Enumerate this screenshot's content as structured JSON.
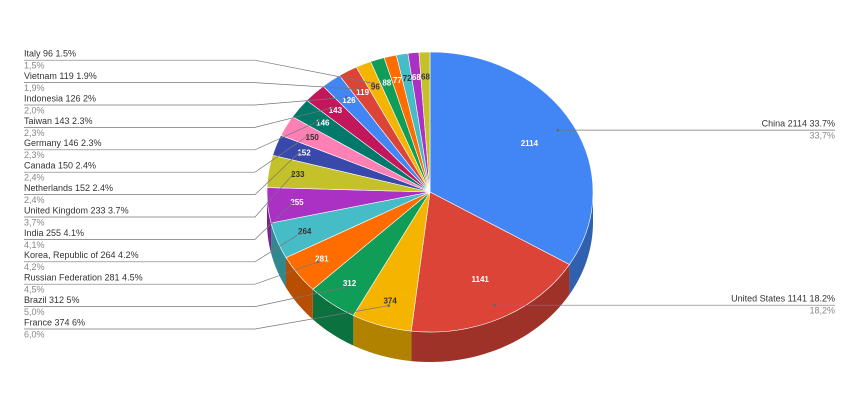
{
  "chart_data": {
    "type": "pie",
    "categories": [
      "China",
      "United States",
      "France",
      "Brazil",
      "Russian Federation",
      "Korea, Republic of",
      "India",
      "United Kingdom",
      "Netherlands",
      "Canada",
      "Germany",
      "Taiwan",
      "Indonesia",
      "Vietnam",
      "Italy",
      null,
      null,
      null,
      null,
      null
    ],
    "values": [
      2114,
      1141,
      374,
      312,
      281,
      264,
      255,
      233,
      152,
      150,
      146,
      143,
      126,
      119,
      96,
      88,
      77,
      72,
      68,
      68
    ],
    "labels": [
      "China 2114 33.7%",
      "United States 1141 18.2%",
      "France 374 6%",
      "Brazil 312 5%",
      "Russian Federation 281 4.5%",
      "Korea, Republic of 264 4.2%",
      "India 255 4.1%",
      "United Kingdom 233 3.7%",
      "Netherlands 152 2.4%",
      "Canada 150 2.4%",
      "Germany 146 2.3%",
      "Taiwan 143 2.3%",
      "Indonesia 126 2%",
      "Vietnam 119 1.9%",
      "Italy 96 1.5%",
      null,
      null,
      null,
      null,
      null
    ],
    "percent_labels": [
      "33,7%",
      "18,2%",
      "6,0%",
      "5,0%",
      "4,5%",
      "4,2%",
      "4,1%",
      "3,7%",
      "2,4%",
      "2,4%",
      "2,3%",
      "2,3%",
      "2,0%",
      "1,9%",
      "1,5%",
      null,
      null,
      null,
      null,
      null
    ],
    "colors": [
      "#4285f4",
      "#db4437",
      "#f4b400",
      "#0f9d58",
      "#ff6d01",
      "#46bdc6",
      "#ab30c4",
      "#c5c12a",
      "#3949ab",
      "#ff80b5",
      "#00796b",
      "#c2185b",
      "#4285f4",
      "#db4437",
      "#f4b400",
      "#0f9d58",
      "#ff6d01",
      "#46bdc6",
      "#ab30c4",
      "#c5c12a"
    ]
  }
}
